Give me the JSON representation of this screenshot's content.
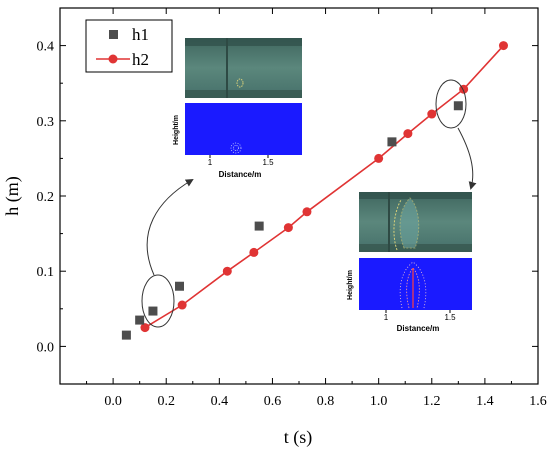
{
  "chart_data": {
    "type": "scatter",
    "xlabel": "t (s)",
    "ylabel": "h (m)",
    "xlim": [
      -0.2,
      1.6
    ],
    "ylim": [
      -0.05,
      0.45
    ],
    "xticks": [
      "0.0",
      "0.2",
      "0.4",
      "0.6",
      "0.8",
      "1.0",
      "1.2",
      "1.4",
      "1.6"
    ],
    "yticks": [
      "0.0",
      "0.1",
      "0.2",
      "0.3",
      "0.4"
    ],
    "xtick_values": [
      0,
      0.2,
      0.4,
      0.6,
      0.8,
      1.0,
      1.2,
      1.4,
      1.6
    ],
    "ytick_values": [
      0,
      0.1,
      0.2,
      0.3,
      0.4
    ],
    "legend_position": "top-left",
    "series": [
      {
        "name": "h1",
        "marker": "square",
        "color": "#4d4d4d",
        "points": [
          {
            "x": 0.05,
            "y": 0.015
          },
          {
            "x": 0.1,
            "y": 0.035
          },
          {
            "x": 0.15,
            "y": 0.047
          },
          {
            "x": 0.25,
            "y": 0.08
          },
          {
            "x": 0.55,
            "y": 0.16
          },
          {
            "x": 1.05,
            "y": 0.272
          },
          {
            "x": 1.3,
            "y": 0.32
          }
        ]
      },
      {
        "name": "h2",
        "marker": "circle-line",
        "color": "#e03434",
        "points": [
          {
            "x": 0.12,
            "y": 0.025
          },
          {
            "x": 0.26,
            "y": 0.055
          },
          {
            "x": 0.43,
            "y": 0.1
          },
          {
            "x": 0.53,
            "y": 0.125
          },
          {
            "x": 0.66,
            "y": 0.158
          },
          {
            "x": 0.73,
            "y": 0.179
          },
          {
            "x": 1.0,
            "y": 0.25
          },
          {
            "x": 1.11,
            "y": 0.283
          },
          {
            "x": 1.2,
            "y": 0.309
          },
          {
            "x": 1.32,
            "y": 0.342
          },
          {
            "x": 1.47,
            "y": 0.4
          }
        ]
      }
    ]
  },
  "inset_left": {
    "ylabel": "Height/m",
    "xlabel": "Distance/m",
    "ticks": [
      "1",
      "1.5"
    ]
  },
  "inset_right": {
    "ylabel": "Height/m",
    "xlabel": "Distance/m",
    "ticks": [
      "1",
      "1.5"
    ]
  },
  "colors": {
    "photo": "#4f7a70",
    "simulation": "#1a1aff",
    "h1": "#4d4d4d",
    "h2": "#e03434"
  }
}
